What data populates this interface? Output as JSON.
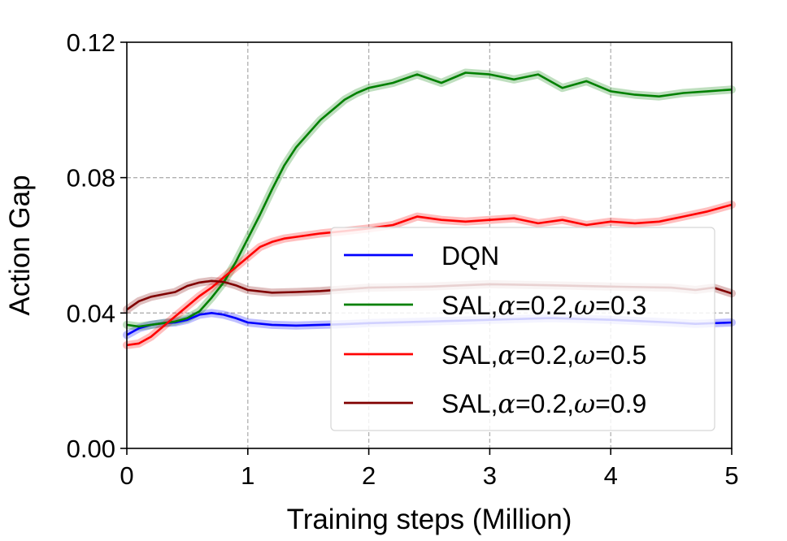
{
  "chart_data": {
    "type": "line",
    "title": "",
    "xlabel": "Training steps (Million)",
    "ylabel": "Action Gap",
    "xlim": [
      0,
      5
    ],
    "ylim": [
      0,
      0.12
    ],
    "xticks": [
      0,
      1,
      2,
      3,
      4,
      5
    ],
    "xtick_labels": [
      "0",
      "1",
      "2",
      "3",
      "4",
      "5"
    ],
    "yticks": [
      0,
      0.04,
      0.08,
      0.12
    ],
    "ytick_labels": [
      "0.00",
      "0.04",
      "0.08",
      "0.12"
    ],
    "grid": true,
    "legend_position": "center-right",
    "series": [
      {
        "name": "DQN",
        "legend_parts": [
          "DQN"
        ],
        "color": "#0000ff",
        "x": [
          0,
          0.1,
          0.2,
          0.3,
          0.4,
          0.5,
          0.6,
          0.7,
          0.8,
          0.9,
          1.0,
          1.2,
          1.4,
          1.6,
          1.8,
          2.0,
          2.5,
          3.0,
          3.5,
          4.0,
          4.5,
          4.7,
          5.0
        ],
        "y": [
          0.0335,
          0.0355,
          0.0365,
          0.037,
          0.0372,
          0.038,
          0.0395,
          0.04,
          0.0395,
          0.0385,
          0.0372,
          0.0365,
          0.0363,
          0.0365,
          0.0367,
          0.037,
          0.0375,
          0.038,
          0.0385,
          0.038,
          0.0372,
          0.0368,
          0.0372
        ]
      },
      {
        "name": "SAL,α=0.2,ω=0.3",
        "legend_parts": [
          "SAL,",
          "α",
          "=0.2,",
          "ω",
          "=0.3"
        ],
        "color": "#008000",
        "x": [
          0,
          0.1,
          0.2,
          0.3,
          0.4,
          0.5,
          0.6,
          0.7,
          0.8,
          0.9,
          1.0,
          1.1,
          1.2,
          1.3,
          1.4,
          1.5,
          1.6,
          1.7,
          1.8,
          1.9,
          2.0,
          2.2,
          2.4,
          2.6,
          2.8,
          3.0,
          3.2,
          3.4,
          3.6,
          3.8,
          4.0,
          4.2,
          4.4,
          4.6,
          4.8,
          5.0
        ],
        "y": [
          0.0365,
          0.036,
          0.0365,
          0.037,
          0.0375,
          0.0385,
          0.0405,
          0.0445,
          0.049,
          0.055,
          0.062,
          0.069,
          0.0765,
          0.0835,
          0.089,
          0.093,
          0.097,
          0.1,
          0.103,
          0.105,
          0.1065,
          0.108,
          0.1105,
          0.108,
          0.111,
          0.1105,
          0.109,
          0.1105,
          0.1065,
          0.1085,
          0.1055,
          0.1045,
          0.104,
          0.105,
          0.1055,
          0.106
        ]
      },
      {
        "name": "SAL,α=0.2,ω=0.5",
        "legend_parts": [
          "SAL,",
          "α",
          "=0.2,",
          "ω",
          "=0.5"
        ],
        "color": "#ff0000",
        "x": [
          0,
          0.1,
          0.2,
          0.3,
          0.4,
          0.5,
          0.6,
          0.7,
          0.8,
          0.9,
          1.0,
          1.1,
          1.2,
          1.3,
          1.4,
          1.5,
          1.6,
          1.8,
          2.0,
          2.2,
          2.4,
          2.6,
          2.8,
          3.0,
          3.2,
          3.4,
          3.6,
          3.8,
          4.0,
          4.2,
          4.4,
          4.6,
          4.8,
          5.0
        ],
        "y": [
          0.0305,
          0.031,
          0.033,
          0.036,
          0.039,
          0.042,
          0.045,
          0.0475,
          0.0505,
          0.0535,
          0.0565,
          0.0595,
          0.061,
          0.062,
          0.0625,
          0.063,
          0.0635,
          0.0642,
          0.065,
          0.066,
          0.0685,
          0.0675,
          0.067,
          0.0675,
          0.068,
          0.0665,
          0.0675,
          0.066,
          0.067,
          0.0665,
          0.067,
          0.0685,
          0.07,
          0.072
        ]
      },
      {
        "name": "SAL,α=0.2,ω=0.9",
        "legend_parts": [
          "SAL,",
          "α",
          "=0.2,",
          "ω",
          "=0.9"
        ],
        "color": "#800000",
        "x": [
          0,
          0.1,
          0.2,
          0.3,
          0.4,
          0.5,
          0.6,
          0.7,
          0.8,
          0.9,
          1.0,
          1.2,
          1.4,
          1.6,
          1.8,
          2.0,
          2.5,
          3.0,
          3.5,
          4.0,
          4.5,
          4.7,
          4.85,
          5.0
        ],
        "y": [
          0.041,
          0.0435,
          0.0448,
          0.0455,
          0.0462,
          0.048,
          0.049,
          0.0495,
          0.0492,
          0.0482,
          0.0468,
          0.046,
          0.0462,
          0.0465,
          0.047,
          0.0475,
          0.0478,
          0.0485,
          0.0482,
          0.0478,
          0.0475,
          0.0468,
          0.0475,
          0.0458
        ]
      }
    ]
  }
}
